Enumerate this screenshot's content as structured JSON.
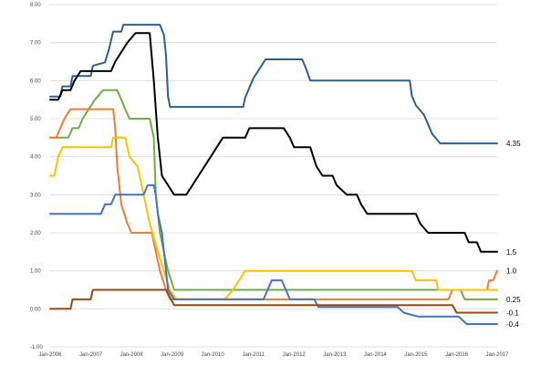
{
  "chart_data": {
    "type": "line",
    "title": "",
    "xlabel": "",
    "ylabel": "",
    "xlim": [
      2006.0,
      2017.0
    ],
    "ylim": [
      -1.0,
      8.0
    ],
    "grid": true,
    "legend": "none",
    "y_ticks": [
      "-1.00",
      "0.00",
      "1.00",
      "2.00",
      "3.00",
      "4.00",
      "5.00",
      "6.00",
      "7.00",
      "8.00"
    ],
    "x_ticks": [
      "Jan-2006",
      "Jan-2007",
      "Jan-2008",
      "Jan-2009",
      "Jan-2010",
      "Jan-2011",
      "Jan-2012",
      "Jan-2013",
      "Jan-2014",
      "Jan-2015",
      "Jan-2016",
      "Jan-2017"
    ],
    "series": [
      {
        "color": "#2e5f93",
        "end_label": "4.35",
        "points": [
          [
            2006.0,
            5.58
          ],
          [
            2006.25,
            5.58
          ],
          [
            2006.3,
            5.85
          ],
          [
            2006.5,
            5.85
          ],
          [
            2006.55,
            6.12
          ],
          [
            2007.0,
            6.12
          ],
          [
            2007.05,
            6.39
          ],
          [
            2007.35,
            6.48
          ],
          [
            2007.45,
            6.84
          ],
          [
            2007.55,
            7.29
          ],
          [
            2007.75,
            7.29
          ],
          [
            2007.8,
            7.47
          ],
          [
            2008.7,
            7.47
          ],
          [
            2008.8,
            7.2
          ],
          [
            2008.85,
            6.66
          ],
          [
            2008.9,
            5.58
          ],
          [
            2008.95,
            5.31
          ],
          [
            2010.75,
            5.31
          ],
          [
            2010.8,
            5.56
          ],
          [
            2010.9,
            5.81
          ],
          [
            2011.0,
            6.06
          ],
          [
            2011.15,
            6.31
          ],
          [
            2011.3,
            6.56
          ],
          [
            2012.2,
            6.56
          ],
          [
            2012.3,
            6.31
          ],
          [
            2012.4,
            6.0
          ],
          [
            2014.85,
            6.0
          ],
          [
            2014.9,
            5.6
          ],
          [
            2015.0,
            5.35
          ],
          [
            2015.2,
            5.1
          ],
          [
            2015.3,
            4.85
          ],
          [
            2015.4,
            4.6
          ],
          [
            2015.6,
            4.35
          ],
          [
            2017.0,
            4.35
          ]
        ]
      },
      {
        "color": "#000000",
        "end_label": "1.5",
        "points": [
          [
            2006.0,
            5.5
          ],
          [
            2006.2,
            5.5
          ],
          [
            2006.3,
            5.75
          ],
          [
            2006.5,
            5.75
          ],
          [
            2006.6,
            6.0
          ],
          [
            2006.75,
            6.25
          ],
          [
            2007.5,
            6.25
          ],
          [
            2007.6,
            6.5
          ],
          [
            2007.75,
            6.75
          ],
          [
            2007.9,
            7.0
          ],
          [
            2008.1,
            7.25
          ],
          [
            2008.45,
            7.25
          ],
          [
            2008.55,
            6.0
          ],
          [
            2008.65,
            4.5
          ],
          [
            2008.75,
            3.5
          ],
          [
            2008.9,
            3.25
          ],
          [
            2009.05,
            3.0
          ],
          [
            2009.35,
            3.0
          ],
          [
            2009.5,
            3.25
          ],
          [
            2009.65,
            3.5
          ],
          [
            2009.8,
            3.75
          ],
          [
            2009.95,
            4.0
          ],
          [
            2010.1,
            4.25
          ],
          [
            2010.25,
            4.5
          ],
          [
            2010.8,
            4.5
          ],
          [
            2010.9,
            4.75
          ],
          [
            2011.75,
            4.75
          ],
          [
            2011.9,
            4.5
          ],
          [
            2012.0,
            4.25
          ],
          [
            2012.4,
            4.25
          ],
          [
            2012.55,
            3.75
          ],
          [
            2012.7,
            3.5
          ],
          [
            2012.95,
            3.5
          ],
          [
            2013.05,
            3.25
          ],
          [
            2013.3,
            3.0
          ],
          [
            2013.55,
            3.0
          ],
          [
            2013.65,
            2.75
          ],
          [
            2013.8,
            2.5
          ],
          [
            2015.0,
            2.5
          ],
          [
            2015.1,
            2.25
          ],
          [
            2015.3,
            2.0
          ],
          [
            2016.2,
            2.0
          ],
          [
            2016.3,
            1.75
          ],
          [
            2016.5,
            1.75
          ],
          [
            2016.6,
            1.5
          ],
          [
            2017.0,
            1.5
          ]
        ]
      },
      {
        "color": "#70ad47",
        "end_label": "0.25",
        "points": [
          [
            2006.0,
            4.5
          ],
          [
            2006.45,
            4.5
          ],
          [
            2006.55,
            4.75
          ],
          [
            2006.7,
            4.75
          ],
          [
            2006.8,
            5.0
          ],
          [
            2006.95,
            5.25
          ],
          [
            2007.1,
            5.5
          ],
          [
            2007.3,
            5.75
          ],
          [
            2007.65,
            5.75
          ],
          [
            2007.75,
            5.5
          ],
          [
            2007.85,
            5.25
          ],
          [
            2007.95,
            5.0
          ],
          [
            2008.45,
            5.0
          ],
          [
            2008.55,
            4.5
          ],
          [
            2008.6,
            3.0
          ],
          [
            2008.7,
            2.0
          ],
          [
            2008.8,
            1.5
          ],
          [
            2008.9,
            1.0
          ],
          [
            2009.05,
            0.5
          ],
          [
            2016.0,
            0.5
          ],
          [
            2016.1,
            0.5
          ],
          [
            2016.2,
            0.25
          ],
          [
            2017.0,
            0.25
          ]
        ]
      },
      {
        "color": "#ed7d31",
        "end_label": "1.0",
        "points": [
          [
            2006.0,
            4.5
          ],
          [
            2006.15,
            4.5
          ],
          [
            2006.25,
            4.75
          ],
          [
            2006.35,
            5.0
          ],
          [
            2006.5,
            5.25
          ],
          [
            2007.55,
            5.25
          ],
          [
            2007.6,
            4.75
          ],
          [
            2007.65,
            3.75
          ],
          [
            2007.75,
            2.75
          ],
          [
            2007.9,
            2.25
          ],
          [
            2008.0,
            2.0
          ],
          [
            2008.5,
            2.0
          ],
          [
            2008.6,
            1.5
          ],
          [
            2008.7,
            1.0
          ],
          [
            2008.85,
            0.5
          ],
          [
            2008.95,
            0.25
          ],
          [
            2015.35,
            0.25
          ],
          [
            2015.8,
            0.25
          ],
          [
            2015.9,
            0.5
          ],
          [
            2016.75,
            0.5
          ],
          [
            2016.8,
            0.75
          ],
          [
            2016.9,
            0.75
          ],
          [
            2017.0,
            1.0
          ]
        ]
      },
      {
        "color": "#ffc000",
        "end_label": "",
        "points": [
          [
            2006.0,
            3.5
          ],
          [
            2006.1,
            3.5
          ],
          [
            2006.2,
            4.0
          ],
          [
            2006.3,
            4.25
          ],
          [
            2007.5,
            4.25
          ],
          [
            2007.55,
            4.5
          ],
          [
            2007.85,
            4.5
          ],
          [
            2007.95,
            4.0
          ],
          [
            2008.15,
            3.75
          ],
          [
            2008.3,
            3.0
          ],
          [
            2008.45,
            2.25
          ],
          [
            2008.65,
            1.5
          ],
          [
            2008.8,
            1.0
          ],
          [
            2008.95,
            0.5
          ],
          [
            2009.1,
            0.25
          ],
          [
            2010.3,
            0.25
          ],
          [
            2010.5,
            0.5
          ],
          [
            2010.65,
            0.75
          ],
          [
            2010.8,
            1.0
          ],
          [
            2014.9,
            1.0
          ],
          [
            2015.0,
            0.75
          ],
          [
            2015.5,
            0.75
          ],
          [
            2015.55,
            0.5
          ],
          [
            2017.0,
            0.5
          ]
        ]
      },
      {
        "color": "#4472c4",
        "end_label": "-0.4",
        "points": [
          [
            2006.0,
            2.5
          ],
          [
            2007.25,
            2.5
          ],
          [
            2007.35,
            2.75
          ],
          [
            2007.5,
            2.75
          ],
          [
            2007.6,
            3.0
          ],
          [
            2008.3,
            3.0
          ],
          [
            2008.4,
            3.25
          ],
          [
            2008.55,
            3.25
          ],
          [
            2008.6,
            3.0
          ],
          [
            2008.65,
            2.5
          ],
          [
            2008.75,
            2.0
          ],
          [
            2008.85,
            1.0
          ],
          [
            2008.9,
            0.5
          ],
          [
            2009.05,
            0.25
          ],
          [
            2011.25,
            0.25
          ],
          [
            2011.45,
            0.75
          ],
          [
            2011.7,
            0.75
          ],
          [
            2011.8,
            0.5
          ],
          [
            2011.9,
            0.25
          ],
          [
            2012.5,
            0.25
          ],
          [
            2012.6,
            0.05
          ],
          [
            2014.55,
            0.05
          ],
          [
            2014.7,
            -0.1
          ],
          [
            2015.05,
            -0.2
          ],
          [
            2016.05,
            -0.2
          ],
          [
            2016.15,
            -0.3
          ],
          [
            2016.25,
            -0.4
          ],
          [
            2017.0,
            -0.4
          ]
        ]
      },
      {
        "color": "#9c4a10",
        "end_label": "-0.1",
        "points": [
          [
            2006.0,
            0.0
          ],
          [
            2006.5,
            0.0
          ],
          [
            2006.55,
            0.25
          ],
          [
            2007.0,
            0.25
          ],
          [
            2007.05,
            0.5
          ],
          [
            2008.85,
            0.5
          ],
          [
            2008.95,
            0.3
          ],
          [
            2009.05,
            0.1
          ],
          [
            2015.9,
            0.1
          ],
          [
            2016.0,
            -0.1
          ],
          [
            2017.0,
            -0.1
          ]
        ]
      }
    ]
  }
}
